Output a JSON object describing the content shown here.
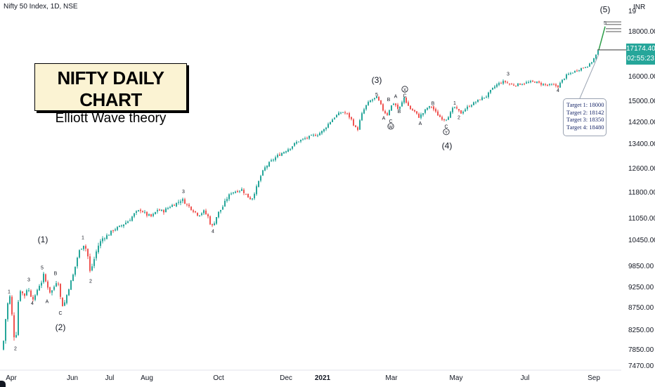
{
  "header": {
    "symbol": "Nifty 50 Index, 1D, NSE",
    "currency": "INR"
  },
  "title_box": {
    "title": "NIFTY DAILY CHART",
    "subtitle": "Elliott Wave theory"
  },
  "price_label": {
    "price": "17174.40",
    "time": "02:55:23"
  },
  "targets": [
    "Target 1: 18000",
    "Target 2: 18142",
    "Target 3: 18350",
    "Target 4: 18480"
  ],
  "chart_data": {
    "type": "candlestick",
    "y_ticks": [
      "19",
      "18000.00",
      "17174.40",
      "16000.00",
      "15000.00",
      "14200.00",
      "13400.00",
      "12600.00",
      "11800.00",
      "11050.00",
      "10450.00",
      "9850.00",
      "9250.00",
      "8750.00",
      "8250.00",
      "7850.00",
      "7470.00"
    ],
    "x_ticks": [
      "Apr",
      "Jun",
      "Jul",
      "Aug",
      "Oct",
      "Dec",
      "2021",
      "Mar",
      "May",
      "Jul",
      "Sep"
    ],
    "path": [
      [
        0,
        7850
      ],
      [
        3,
        8400
      ],
      [
        6,
        8700
      ],
      [
        9,
        9150
      ],
      [
        12,
        8750
      ],
      [
        15,
        8250
      ],
      [
        18,
        7900
      ],
      [
        21,
        8750
      ],
      [
        24,
        9200
      ],
      [
        27,
        9150
      ],
      [
        30,
        9000
      ],
      [
        35,
        9250
      ],
      [
        40,
        9050
      ],
      [
        45,
        8950
      ],
      [
        50,
        9250
      ],
      [
        55,
        9400
      ],
      [
        58,
        9600
      ],
      [
        62,
        9350
      ],
      [
        68,
        9100
      ],
      [
        74,
        9300
      ],
      [
        78,
        9500
      ],
      [
        82,
        9000
      ],
      [
        86,
        8750
      ],
      [
        90,
        9000
      ],
      [
        95,
        9300
      ],
      [
        100,
        9600
      ],
      [
        105,
        10000
      ],
      [
        110,
        10250
      ],
      [
        115,
        10350
      ],
      [
        120,
        10200
      ],
      [
        124,
        9700
      ],
      [
        128,
        9900
      ],
      [
        135,
        10300
      ],
      [
        142,
        10500
      ],
      [
        150,
        10600
      ],
      [
        158,
        10750
      ],
      [
        165,
        10800
      ],
      [
        172,
        10900
      ],
      [
        180,
        11000
      ],
      [
        188,
        11200
      ],
      [
        196,
        11300
      ],
      [
        205,
        11150
      ],
      [
        212,
        11100
      ],
      [
        220,
        11300
      ],
      [
        228,
        11250
      ],
      [
        238,
        11400
      ],
      [
        248,
        11500
      ],
      [
        255,
        11600
      ],
      [
        262,
        11450
      ],
      [
        270,
        11300
      ],
      [
        278,
        11150
      ],
      [
        286,
        11250
      ],
      [
        292,
        11100
      ],
      [
        297,
        10800
      ],
      [
        301,
        10950
      ],
      [
        306,
        11200
      ],
      [
        312,
        11350
      ],
      [
        318,
        11600
      ],
      [
        325,
        11800
      ],
      [
        333,
        11850
      ],
      [
        340,
        11900
      ],
      [
        347,
        11700
      ],
      [
        354,
        11600
      ],
      [
        360,
        11900
      ],
      [
        366,
        12300
      ],
      [
        372,
        12600
      ],
      [
        380,
        12800
      ],
      [
        390,
        13000
      ],
      [
        400,
        13150
      ],
      [
        410,
        13300
      ],
      [
        420,
        13500
      ],
      [
        430,
        13600
      ],
      [
        440,
        13700
      ],
      [
        448,
        13750
      ],
      [
        456,
        13900
      ],
      [
        465,
        14200
      ],
      [
        474,
        14450
      ],
      [
        483,
        14600
      ],
      [
        490,
        14500
      ],
      [
        496,
        14300
      ],
      [
        501,
        14000
      ],
      [
        505,
        13950
      ],
      [
        510,
        14450
      ],
      [
        516,
        14800
      ],
      [
        522,
        15000
      ],
      [
        528,
        15100
      ],
      [
        532,
        15150
      ],
      [
        537,
        14900
      ],
      [
        542,
        14600
      ],
      [
        547,
        14500
      ],
      [
        552,
        14800
      ],
      [
        557,
        14950
      ],
      [
        562,
        14700
      ],
      [
        566,
        14800
      ],
      [
        571,
        15150
      ],
      [
        575,
        14900
      ],
      [
        580,
        14700
      ],
      [
        586,
        14600
      ],
      [
        592,
        14400
      ],
      [
        598,
        14550
      ],
      [
        604,
        14750
      ],
      [
        610,
        14800
      ],
      [
        614,
        14650
      ],
      [
        618,
        14500
      ],
      [
        624,
        14350
      ],
      [
        630,
        14300
      ],
      [
        636,
        14500
      ],
      [
        642,
        14800
      ],
      [
        647,
        14650
      ],
      [
        652,
        14550
      ],
      [
        658,
        14700
      ],
      [
        665,
        14850
      ],
      [
        672,
        14950
      ],
      [
        680,
        15100
      ],
      [
        688,
        15200
      ],
      [
        695,
        15450
      ],
      [
        702,
        15650
      ],
      [
        708,
        15750
      ],
      [
        714,
        15800
      ],
      [
        720,
        15700
      ],
      [
        728,
        15650
      ],
      [
        736,
        15700
      ],
      [
        746,
        15750
      ],
      [
        756,
        15800
      ],
      [
        766,
        15700
      ],
      [
        776,
        15650
      ],
      [
        784,
        15650
      ],
      [
        790,
        15600
      ],
      [
        796,
        15850
      ],
      [
        802,
        16050
      ],
      [
        808,
        16150
      ],
      [
        815,
        16250
      ],
      [
        822,
        16350
      ],
      [
        830,
        16450
      ],
      [
        836,
        16550
      ],
      [
        842,
        16850
      ],
      [
        848,
        17150
      ]
    ],
    "wave_labels": [
      {
        "text": "1",
        "x": 9,
        "y": 9100
      },
      {
        "text": "2",
        "x": 18,
        "y": 7840
      },
      {
        "text": "3",
        "x": 37,
        "y": 9420
      },
      {
        "text": "4",
        "x": 42,
        "y": 8820
      },
      {
        "text": "5",
        "x": 56,
        "y": 9760
      },
      {
        "text": "(1)",
        "x": 57,
        "y": 10400
      },
      {
        "text": "A",
        "x": 63,
        "y": 8860
      },
      {
        "text": "B",
        "x": 75,
        "y": 9600
      },
      {
        "text": "C",
        "x": 82,
        "y": 8590
      },
      {
        "text": "(2)",
        "x": 82,
        "y": 8250
      },
      {
        "text": "1",
        "x": 114,
        "y": 10480
      },
      {
        "text": "2",
        "x": 125,
        "y": 9380
      },
      {
        "text": "3",
        "x": 257,
        "y": 11780
      },
      {
        "text": "4",
        "x": 299,
        "y": 10650
      },
      {
        "text": "(3)",
        "x": 532,
        "y": 15750
      },
      {
        "text": "5",
        "x": 532,
        "y": 15200
      },
      {
        "text": "A",
        "x": 542,
        "y": 14300
      },
      {
        "text": "B",
        "x": 549,
        "y": 15000
      },
      {
        "text": "C",
        "x": 552,
        "y": 14170
      },
      {
        "text": "W",
        "x": 552,
        "y": 13970,
        "circle": true
      },
      {
        "text": "A",
        "x": 559,
        "y": 15130
      },
      {
        "text": "B",
        "x": 564,
        "y": 14550
      },
      {
        "text": "X",
        "x": 572,
        "y": 15400,
        "circle": true
      },
      {
        "text": "C",
        "x": 572,
        "y": 15160
      },
      {
        "text": "A",
        "x": 594,
        "y": 14100
      },
      {
        "text": "B",
        "x": 612,
        "y": 14850
      },
      {
        "text": "C",
        "x": 631,
        "y": 13980
      },
      {
        "text": "Y",
        "x": 631,
        "y": 13770,
        "circle": true
      },
      {
        "text": "(4)",
        "x": 632,
        "y": 13250
      },
      {
        "text": "1",
        "x": 643,
        "y": 14870
      },
      {
        "text": "2",
        "x": 649,
        "y": 14320
      },
      {
        "text": "3",
        "x": 719,
        "y": 16050
      },
      {
        "text": "4",
        "x": 790,
        "y": 15370
      },
      {
        "text": "5",
        "x": 857,
        "y": 18350
      },
      {
        "text": "(5)",
        "x": 857,
        "y": 18950
      }
    ]
  }
}
